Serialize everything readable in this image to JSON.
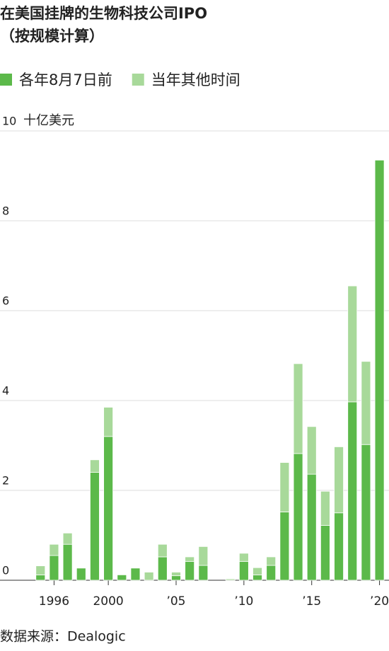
{
  "chart_data": {
    "type": "stacked_bar",
    "title": "在美国挂牌的生物科技公司IPO",
    "subtitle": "（按规模计算）",
    "y_unit": "十亿美元",
    "source": "数据来源：Dealogic",
    "x": [
      1995,
      1996,
      1997,
      1998,
      1999,
      2000,
      2001,
      2002,
      2003,
      2004,
      2005,
      2006,
      2007,
      2008,
      2009,
      2010,
      2011,
      2012,
      2013,
      2014,
      2015,
      2016,
      2017,
      2018,
      2019,
      2020
    ],
    "series": [
      {
        "name": "各年8月7日前",
        "color": "#5cb94a",
        "values": [
          0.12,
          0.55,
          0.8,
          0.27,
          2.4,
          3.2,
          0.12,
          0.27,
          0,
          0.52,
          0.1,
          0.42,
          0.33,
          0,
          0,
          0.42,
          0.12,
          0.33,
          1.52,
          2.82,
          2.36,
          1.22,
          1.5,
          3.97,
          3.02,
          9.35
        ]
      },
      {
        "name": "当年其他时间",
        "color": "#a8d99a",
        "values": [
          0.2,
          0.25,
          0.25,
          0,
          0.28,
          0.65,
          0,
          0,
          0.18,
          0.28,
          0.08,
          0.1,
          0.42,
          0,
          0.03,
          0.18,
          0.16,
          0.19,
          1.1,
          2.0,
          1.06,
          0.76,
          1.47,
          2.58,
          1.85,
          0
        ]
      }
    ],
    "xlim": [
      1994.1,
      2020.7
    ],
    "xticks": [
      {
        "value": 1996,
        "label": "1996"
      },
      {
        "value": 2000,
        "label": "2000"
      },
      {
        "value": 2005,
        "label": "’05"
      },
      {
        "value": 2010,
        "label": "’10"
      },
      {
        "value": 2015,
        "label": "’15"
      },
      {
        "value": 2020,
        "label": "’20"
      }
    ],
    "ylim": [
      0,
      10
    ],
    "yticks": [
      0,
      2,
      4,
      6,
      8,
      10
    ],
    "grid": true
  }
}
